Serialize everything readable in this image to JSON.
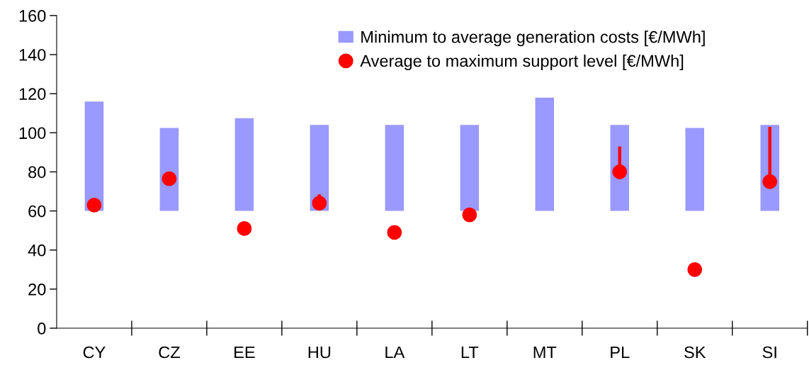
{
  "chart_data": {
    "type": "bar",
    "categories": [
      "CY",
      "CZ",
      "EE",
      "HU",
      "LA",
      "LT",
      "MT",
      "PL",
      "SK",
      "SI"
    ],
    "series": [
      {
        "name": "Minimum to average generation costs [€/MWh]",
        "type": "bar",
        "color": "#9999ff",
        "base": [
          60,
          60,
          60,
          60,
          60,
          60,
          60,
          60,
          60,
          60
        ],
        "values": [
          56,
          42.5,
          47.5,
          44,
          44,
          44,
          58,
          44,
          42.5,
          44
        ]
      },
      {
        "name": "Average to maximum support level [€/MWh]",
        "type": "scatter",
        "color": "#ff0000",
        "marker": "circle",
        "x": [
          "CY",
          "CZ",
          "EE",
          "HU",
          "LA",
          "LT",
          "MT",
          "PL",
          "SK",
          "SI"
        ],
        "values": [
          63,
          76.5,
          51,
          64,
          49,
          58,
          null,
          80,
          30,
          75
        ],
        "errors": [
          null,
          null,
          null,
          [
            64,
            68.5
          ],
          null,
          null,
          null,
          [
            80,
            93
          ],
          null,
          [
            75,
            103
          ]
        ]
      }
    ],
    "ylim": [
      0,
      160
    ],
    "yticks": [
      0,
      20,
      40,
      60,
      80,
      100,
      120,
      140,
      160
    ],
    "grid": false,
    "legend": "top"
  }
}
